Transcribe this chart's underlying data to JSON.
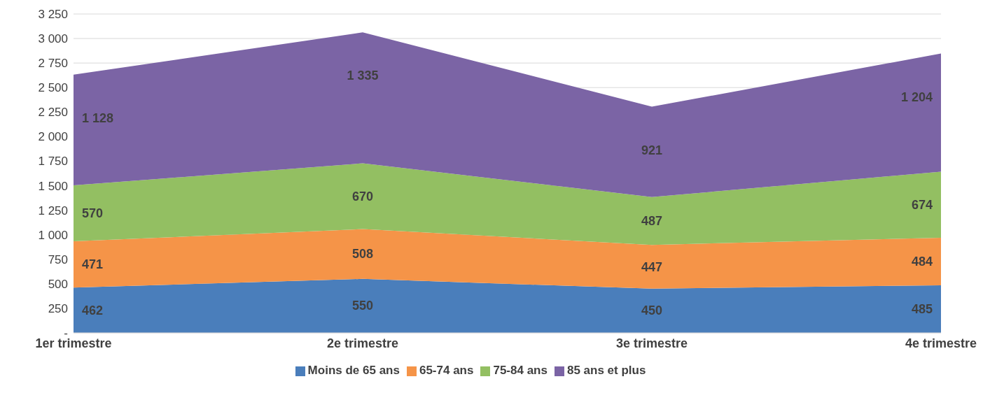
{
  "chart_data": {
    "type": "area",
    "stacked": true,
    "categories": [
      "1er trimestre",
      "2e trimestre",
      "3e trimestre",
      "4e trimestre"
    ],
    "series": [
      {
        "name": "Moins de 65 ans",
        "color": "#4a7ebb",
        "values": [
          462,
          550,
          450,
          485
        ],
        "value_labels": [
          "462",
          "550",
          "450",
          "485"
        ]
      },
      {
        "name": "65-74 ans",
        "color": "#f59448",
        "values": [
          471,
          508,
          447,
          484
        ],
        "value_labels": [
          "471",
          "508",
          "447",
          "484"
        ]
      },
      {
        "name": "75-84 ans",
        "color": "#93bf62",
        "values": [
          570,
          670,
          487,
          674
        ],
        "value_labels": [
          "570",
          "670",
          "487",
          "674"
        ]
      },
      {
        "name": "85 ans et plus",
        "color": "#7b64a5",
        "values": [
          1128,
          1335,
          921,
          1204
        ],
        "value_labels": [
          "1 128",
          "1 335",
          "921",
          "1 204"
        ]
      }
    ],
    "ylim": [
      0,
      3250
    ],
    "yticks": [
      {
        "value": 0,
        "label": "-"
      },
      250,
      500,
      750,
      {
        "value": 1000,
        "label": "1 000"
      },
      {
        "value": 1250,
        "label": "1 250"
      },
      {
        "value": 1500,
        "label": "1 500"
      },
      {
        "value": 1750,
        "label": "1 750"
      },
      {
        "value": 2000,
        "label": "2 000"
      },
      {
        "value": 2250,
        "label": "2 250"
      },
      {
        "value": 2500,
        "label": "2 500"
      },
      {
        "value": 2750,
        "label": "2 750"
      },
      {
        "value": 3000,
        "label": "3 000"
      },
      {
        "value": 3250,
        "label": "3 250"
      }
    ],
    "grid": "y",
    "legend": "bottom"
  }
}
